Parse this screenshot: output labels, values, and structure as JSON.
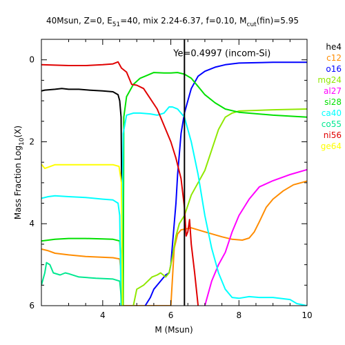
{
  "chart_data": {
    "type": "line",
    "title": {
      "prefix": "40Msun, Z=0, E",
      "e_sub": "51",
      "middle": "=40, mix 2.24-6.37, f=0.10, M",
      "m_sub": "cut",
      "suffix": "(fin)=5.95"
    },
    "xlabel": "M (Msun)",
    "ylabel": {
      "main": "Mass Fraction Log",
      "sub": "10",
      "tail": "(X)"
    },
    "xlim": [
      2.2,
      10
    ],
    "ylim": [
      -6,
      0.5
    ],
    "x_ticks": [
      4,
      6,
      8,
      10
    ],
    "y_ticks": [
      0,
      -2,
      -4,
      -6
    ],
    "y_tick_labels": [
      "0",
      "2",
      "4",
      "6"
    ],
    "grid": false,
    "legend_position": "right",
    "annotation": {
      "text": "Ye=0.4997 (incom-Si)",
      "x": 6.4,
      "y": 0.17
    },
    "vline_x": 6.4,
    "series": [
      {
        "name": "he4",
        "color": "#000000",
        "points": [
          [
            2.2,
            -0.76
          ],
          [
            2.3,
            -0.74
          ],
          [
            2.6,
            -0.72
          ],
          [
            2.8,
            -0.7
          ],
          [
            3.0,
            -0.72
          ],
          [
            3.3,
            -0.72
          ],
          [
            3.6,
            -0.74
          ],
          [
            4.0,
            -0.76
          ],
          [
            4.3,
            -0.78
          ],
          [
            4.45,
            -0.85
          ],
          [
            4.5,
            -1.0
          ],
          [
            4.54,
            -1.4
          ],
          [
            4.56,
            -3.5
          ],
          [
            4.58,
            -6.0
          ]
        ]
      },
      {
        "name": "c12",
        "color": "#ff8c00",
        "points": [
          [
            2.2,
            -4.62
          ],
          [
            2.4,
            -4.66
          ],
          [
            2.6,
            -4.72
          ],
          [
            3.0,
            -4.76
          ],
          [
            3.5,
            -4.8
          ],
          [
            4.3,
            -4.83
          ],
          [
            4.5,
            -4.86
          ],
          [
            4.55,
            -5.3
          ],
          [
            4.58,
            -6.0
          ],
          [
            6.0,
            -6.0
          ],
          [
            6.1,
            -4.6
          ],
          [
            6.2,
            -4.25
          ],
          [
            6.3,
            -4.15
          ],
          [
            6.6,
            -4.1
          ],
          [
            7.0,
            -4.2
          ],
          [
            7.5,
            -4.32
          ],
          [
            7.8,
            -4.38
          ],
          [
            8.1,
            -4.4
          ],
          [
            8.3,
            -4.35
          ],
          [
            8.45,
            -4.2
          ],
          [
            8.6,
            -3.95
          ],
          [
            8.8,
            -3.6
          ],
          [
            9.0,
            -3.4
          ],
          [
            9.3,
            -3.2
          ],
          [
            9.6,
            -3.05
          ],
          [
            10.0,
            -2.96
          ]
        ]
      },
      {
        "name": "o16",
        "color": "#0000ff",
        "points": [
          [
            5.25,
            -6.0
          ],
          [
            5.4,
            -5.8
          ],
          [
            5.5,
            -5.6
          ],
          [
            5.75,
            -5.35
          ],
          [
            5.85,
            -5.25
          ],
          [
            5.95,
            -5.2
          ],
          [
            6.0,
            -5.0
          ],
          [
            6.05,
            -4.5
          ],
          [
            6.1,
            -4.0
          ],
          [
            6.15,
            -3.5
          ],
          [
            6.2,
            -2.8
          ],
          [
            6.3,
            -1.8
          ],
          [
            6.4,
            -1.3
          ],
          [
            6.5,
            -1.0
          ],
          [
            6.6,
            -0.7
          ],
          [
            6.8,
            -0.4
          ],
          [
            7.0,
            -0.28
          ],
          [
            7.3,
            -0.18
          ],
          [
            7.6,
            -0.12
          ],
          [
            8.0,
            -0.08
          ],
          [
            9.0,
            -0.06
          ],
          [
            10.0,
            -0.06
          ]
        ]
      },
      {
        "name": "mg24",
        "color": "#8fe800",
        "points": [
          [
            4.9,
            -6.0
          ],
          [
            5.0,
            -5.6
          ],
          [
            5.2,
            -5.5
          ],
          [
            5.45,
            -5.3
          ],
          [
            5.6,
            -5.25
          ],
          [
            5.7,
            -5.2
          ],
          [
            5.85,
            -5.3
          ],
          [
            5.95,
            -5.2
          ],
          [
            6.05,
            -4.8
          ],
          [
            6.15,
            -4.3
          ],
          [
            6.25,
            -4.0
          ],
          [
            6.4,
            -3.8
          ],
          [
            6.6,
            -3.3
          ],
          [
            6.8,
            -3.0
          ],
          [
            7.0,
            -2.7
          ],
          [
            7.2,
            -2.2
          ],
          [
            7.4,
            -1.7
          ],
          [
            7.6,
            -1.4
          ],
          [
            7.8,
            -1.3
          ],
          [
            8.0,
            -1.25
          ],
          [
            9.0,
            -1.22
          ],
          [
            10.0,
            -1.2
          ]
        ]
      },
      {
        "name": "al27",
        "color": "#ff00ff",
        "points": [
          [
            7.0,
            -6.0
          ],
          [
            7.2,
            -5.4
          ],
          [
            7.4,
            -5.0
          ],
          [
            7.6,
            -4.7
          ],
          [
            7.8,
            -4.2
          ],
          [
            8.0,
            -3.8
          ],
          [
            8.3,
            -3.4
          ],
          [
            8.6,
            -3.1
          ],
          [
            9.0,
            -2.95
          ],
          [
            9.5,
            -2.8
          ],
          [
            10.0,
            -2.68
          ]
        ]
      },
      {
        "name": "si28",
        "color": "#00e000",
        "points": [
          [
            2.2,
            -4.42
          ],
          [
            2.4,
            -4.4
          ],
          [
            2.6,
            -4.38
          ],
          [
            3.0,
            -4.36
          ],
          [
            3.5,
            -4.36
          ],
          [
            4.0,
            -4.37
          ],
          [
            4.3,
            -4.38
          ],
          [
            4.5,
            -4.42
          ],
          [
            4.58,
            -5.5
          ],
          [
            4.6,
            -6.0
          ],
          [
            4.62,
            -1.4
          ],
          [
            4.7,
            -0.9
          ],
          [
            4.9,
            -0.6
          ],
          [
            5.1,
            -0.45
          ],
          [
            5.3,
            -0.38
          ],
          [
            5.5,
            -0.31
          ],
          [
            5.8,
            -0.32
          ],
          [
            6.0,
            -0.32
          ],
          [
            6.2,
            -0.31
          ],
          [
            6.4,
            -0.35
          ],
          [
            6.6,
            -0.45
          ],
          [
            6.8,
            -0.65
          ],
          [
            7.0,
            -0.85
          ],
          [
            7.3,
            -1.05
          ],
          [
            7.6,
            -1.2
          ],
          [
            8.0,
            -1.28
          ],
          [
            9.0,
            -1.35
          ],
          [
            10.0,
            -1.4
          ]
        ]
      },
      {
        "name": "ca40",
        "color": "#00ffff",
        "points": [
          [
            2.2,
            -3.38
          ],
          [
            2.4,
            -3.34
          ],
          [
            2.6,
            -3.32
          ],
          [
            3.0,
            -3.34
          ],
          [
            3.5,
            -3.36
          ],
          [
            4.0,
            -3.4
          ],
          [
            4.3,
            -3.42
          ],
          [
            4.45,
            -3.5
          ],
          [
            4.5,
            -3.8
          ],
          [
            4.54,
            -6.0
          ],
          [
            4.6,
            -1.8
          ],
          [
            4.7,
            -1.35
          ],
          [
            4.9,
            -1.3
          ],
          [
            5.1,
            -1.3
          ],
          [
            5.4,
            -1.32
          ],
          [
            5.6,
            -1.35
          ],
          [
            5.8,
            -1.3
          ],
          [
            5.95,
            -1.15
          ],
          [
            6.05,
            -1.15
          ],
          [
            6.2,
            -1.2
          ],
          [
            6.4,
            -1.4
          ],
          [
            6.6,
            -2.0
          ],
          [
            6.8,
            -2.8
          ],
          [
            7.0,
            -3.8
          ],
          [
            7.2,
            -4.6
          ],
          [
            7.4,
            -5.2
          ],
          [
            7.6,
            -5.6
          ],
          [
            7.8,
            -5.8
          ],
          [
            8.0,
            -5.82
          ],
          [
            8.3,
            -5.78
          ],
          [
            8.6,
            -5.8
          ],
          [
            9.0,
            -5.8
          ],
          [
            9.5,
            -5.85
          ],
          [
            9.7,
            -5.95
          ],
          [
            10.0,
            -6.0
          ]
        ]
      },
      {
        "name": "co55",
        "color": "#00e890",
        "points": [
          [
            2.2,
            -5.5
          ],
          [
            2.3,
            -5.2
          ],
          [
            2.35,
            -4.95
          ],
          [
            2.45,
            -5.0
          ],
          [
            2.55,
            -5.2
          ],
          [
            2.75,
            -5.25
          ],
          [
            2.9,
            -5.2
          ],
          [
            3.0,
            -5.22
          ],
          [
            3.3,
            -5.3
          ],
          [
            3.8,
            -5.33
          ],
          [
            4.3,
            -5.35
          ],
          [
            4.5,
            -5.4
          ],
          [
            4.57,
            -6.0
          ]
        ]
      },
      {
        "name": "ni56",
        "color": "#e00000",
        "points": [
          [
            2.2,
            -0.12
          ],
          [
            2.6,
            -0.13
          ],
          [
            3.0,
            -0.14
          ],
          [
            3.5,
            -0.14
          ],
          [
            4.0,
            -0.12
          ],
          [
            4.3,
            -0.1
          ],
          [
            4.45,
            -0.05
          ],
          [
            4.55,
            -0.2
          ],
          [
            4.7,
            -0.3
          ],
          [
            4.85,
            -0.6
          ],
          [
            5.0,
            -0.62
          ],
          [
            5.2,
            -0.7
          ],
          [
            5.4,
            -0.95
          ],
          [
            5.6,
            -1.2
          ],
          [
            5.8,
            -1.6
          ],
          [
            6.0,
            -2.0
          ],
          [
            6.15,
            -2.4
          ],
          [
            6.3,
            -2.9
          ],
          [
            6.4,
            -3.6
          ],
          [
            6.45,
            -4.3
          ],
          [
            6.5,
            -4.2
          ],
          [
            6.55,
            -3.9
          ],
          [
            6.6,
            -4.5
          ],
          [
            6.7,
            -5.2
          ],
          [
            6.8,
            -6.0
          ]
        ]
      },
      {
        "name": "ge64",
        "color": "#ffff00",
        "points": [
          [
            2.2,
            -2.55
          ],
          [
            2.3,
            -2.65
          ],
          [
            2.4,
            -2.62
          ],
          [
            2.6,
            -2.56
          ],
          [
            3.0,
            -2.56
          ],
          [
            3.5,
            -2.56
          ],
          [
            4.0,
            -2.56
          ],
          [
            4.3,
            -2.56
          ],
          [
            4.48,
            -2.6
          ],
          [
            4.55,
            -3.0
          ],
          [
            4.58,
            -6.0
          ]
        ]
      }
    ]
  }
}
